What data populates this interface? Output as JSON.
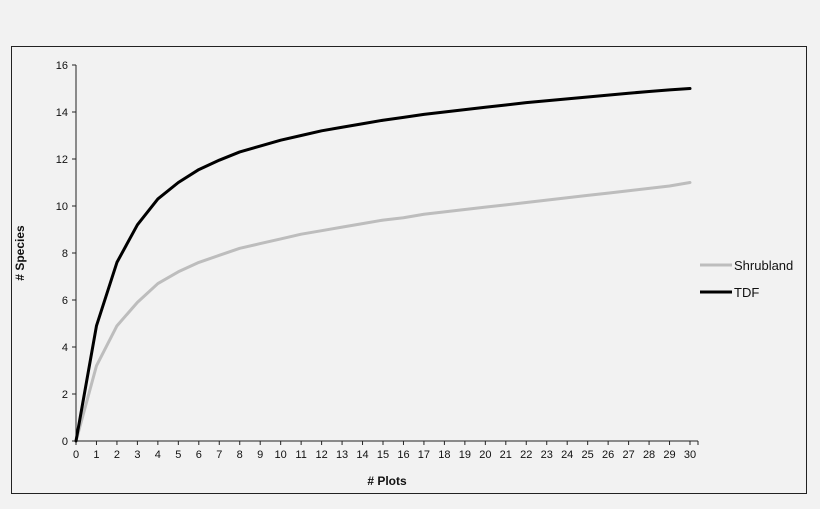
{
  "chart_data": {
    "type": "line",
    "title": "",
    "xlabel": "# Plots",
    "ylabel": "# Species",
    "xlim": [
      0,
      30
    ],
    "ylim": [
      0,
      16
    ],
    "x_ticks": [
      0,
      1,
      2,
      3,
      4,
      5,
      6,
      7,
      8,
      9,
      10,
      11,
      12,
      13,
      14,
      15,
      16,
      17,
      18,
      19,
      20,
      21,
      22,
      23,
      24,
      25,
      26,
      27,
      28,
      29,
      30
    ],
    "y_ticks": [
      0,
      2,
      4,
      6,
      8,
      10,
      12,
      14,
      16
    ],
    "x": [
      0,
      1,
      2,
      3,
      4,
      5,
      6,
      7,
      8,
      9,
      10,
      11,
      12,
      13,
      14,
      15,
      16,
      17,
      18,
      19,
      20,
      21,
      22,
      23,
      24,
      25,
      26,
      27,
      28,
      29,
      30
    ],
    "series": [
      {
        "name": "Shrubland",
        "color": "#bdbdbd",
        "values": [
          0,
          3.2,
          4.9,
          5.9,
          6.7,
          7.2,
          7.6,
          7.9,
          8.2,
          8.4,
          8.6,
          8.8,
          8.95,
          9.1,
          9.25,
          9.4,
          9.5,
          9.65,
          9.75,
          9.85,
          9.95,
          10.05,
          10.15,
          10.25,
          10.35,
          10.45,
          10.55,
          10.65,
          10.75,
          10.85,
          11.0
        ],
        "stroke_width": 3
      },
      {
        "name": "TDF",
        "color": "#000000",
        "values": [
          0,
          4.9,
          7.6,
          9.2,
          10.3,
          11.0,
          11.55,
          11.95,
          12.3,
          12.55,
          12.8,
          13.0,
          13.2,
          13.35,
          13.5,
          13.65,
          13.77,
          13.9,
          14.0,
          14.1,
          14.2,
          14.3,
          14.4,
          14.48,
          14.56,
          14.64,
          14.72,
          14.8,
          14.87,
          14.94,
          15.0
        ],
        "stroke_width": 3
      }
    ],
    "legend": {
      "position": "right"
    },
    "grid": false
  }
}
